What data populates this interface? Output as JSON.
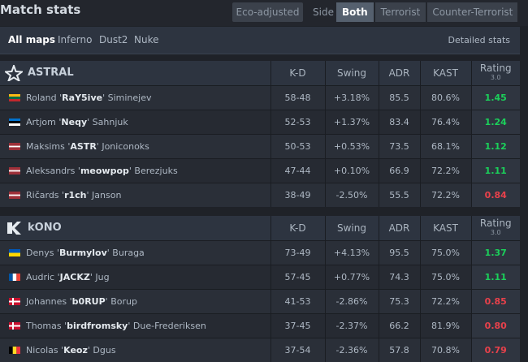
{
  "header": {
    "title": "Match stats",
    "eco_label": "Eco-adjusted",
    "side_label": "Side",
    "side_tabs": [
      "Both",
      "Terrorist",
      "Counter-Terrorist"
    ],
    "active_side": "Both"
  },
  "maps": {
    "tabs": [
      "All maps",
      "Inferno",
      "Dust2",
      "Nuke"
    ],
    "active": "All maps",
    "detailed_link": "Detailed stats"
  },
  "columns": {
    "kd": "K-D",
    "swing": "Swing",
    "adr": "ADR",
    "kast": "KAST",
    "rating": "Rating",
    "rating_version": "3.0"
  },
  "teams": [
    {
      "name": "ASTRAL",
      "logo_icon": "astralis-star-icon",
      "players": [
        {
          "first": "Roland",
          "nick": "RaY5ive",
          "last": "Siminejev",
          "flag": "Lithuania",
          "kd": "58-48",
          "swing": "+3.18%",
          "adr": "85.5",
          "kast": "80.6%",
          "rating": "1.45"
        },
        {
          "first": "Artjom",
          "nick": "Neqy",
          "last": "Sahnjuk",
          "flag": "Estonia",
          "kd": "52-53",
          "swing": "+1.37%",
          "adr": "83.4",
          "kast": "76.4%",
          "rating": "1.24"
        },
        {
          "first": "Maksims",
          "nick": "ASTR",
          "last": "Joniconoks",
          "flag": "Latvia",
          "kd": "50-53",
          "swing": "+0.53%",
          "adr": "73.5",
          "kast": "68.1%",
          "rating": "1.12"
        },
        {
          "first": "Aleksandrs",
          "nick": "meowpop",
          "last": "Berezjuks",
          "flag": "Latvia",
          "kd": "47-44",
          "swing": "+0.10%",
          "adr": "66.9",
          "kast": "72.2%",
          "rating": "1.11"
        },
        {
          "first": "Ričards",
          "nick": "r1ch",
          "last": "Janson",
          "flag": "Latvia",
          "kd": "38-49",
          "swing": "-2.50%",
          "adr": "55.5",
          "kast": "72.2%",
          "rating": "0.84"
        }
      ]
    },
    {
      "name": "kONO",
      "logo_icon": "kono-k-icon",
      "players": [
        {
          "first": "Denys",
          "nick": "Burmylov",
          "last": "Buraga",
          "flag": "Ukraine",
          "kd": "73-49",
          "swing": "+4.13%",
          "adr": "95.5",
          "kast": "75.0%",
          "rating": "1.37"
        },
        {
          "first": "Audric",
          "nick": "JACKZ",
          "last": "Jug",
          "flag": "France",
          "kd": "57-45",
          "swing": "+0.77%",
          "adr": "74.3",
          "kast": "75.0%",
          "rating": "1.11"
        },
        {
          "first": "Johannes",
          "nick": "b0RUP",
          "last": "Borup",
          "flag": "Denmark",
          "kd": "41-53",
          "swing": "-2.86%",
          "adr": "75.3",
          "kast": "72.2%",
          "rating": "0.85"
        },
        {
          "first": "Thomas",
          "nick": "birdfromsky",
          "last": "Due-Frederiksen",
          "flag": "Denmark",
          "kd": "37-45",
          "swing": "-2.37%",
          "adr": "66.2",
          "kast": "81.9%",
          "rating": "0.80"
        },
        {
          "first": "Nicolas",
          "nick": "Keoz",
          "last": "Dgus",
          "flag": "Belgium",
          "kd": "37-54",
          "swing": "-2.36%",
          "adr": "57.8",
          "kast": "70.8%",
          "rating": "0.79"
        }
      ]
    }
  ],
  "colors": {
    "positive": "#1bd05a",
    "negative": "#e8414b",
    "rating_high": "#1bd05a",
    "rating_low": "#e8414b"
  }
}
